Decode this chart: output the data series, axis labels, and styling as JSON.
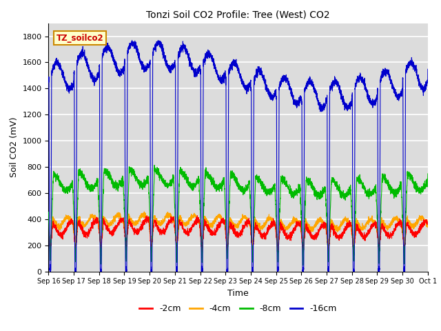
{
  "title": "Tonzi Soil CO2 Profile: Tree (West) CO2",
  "xlabel": "Time",
  "ylabel": "Soil CO2 (mV)",
  "ylim": [
    0,
    1900
  ],
  "yticks": [
    0,
    200,
    400,
    600,
    800,
    1000,
    1200,
    1400,
    1600,
    1800
  ],
  "plot_bg": "#dcdcdc",
  "grid_color": "white",
  "colors": {
    "2cm": "#ff0000",
    "4cm": "#ffa500",
    "8cm": "#00bb00",
    "16cm": "#0000cc"
  },
  "legend_label": "TZ_soilco2",
  "legend_bg": "#ffffcc",
  "legend_edge": "#cc8800",
  "legend_text_color": "#cc0000",
  "x_tick_labels": [
    "Sep 16",
    "Sep 17",
    "Sep 18",
    "Sep 19",
    "Sep 20",
    "Sep 21",
    "Sep 22",
    "Sep 23",
    "Sep 24",
    "Sep 25",
    "Sep 26",
    "Sep 27",
    "Sep 28",
    "Sep 29",
    "Sep 30",
    "Oct 1"
  ]
}
